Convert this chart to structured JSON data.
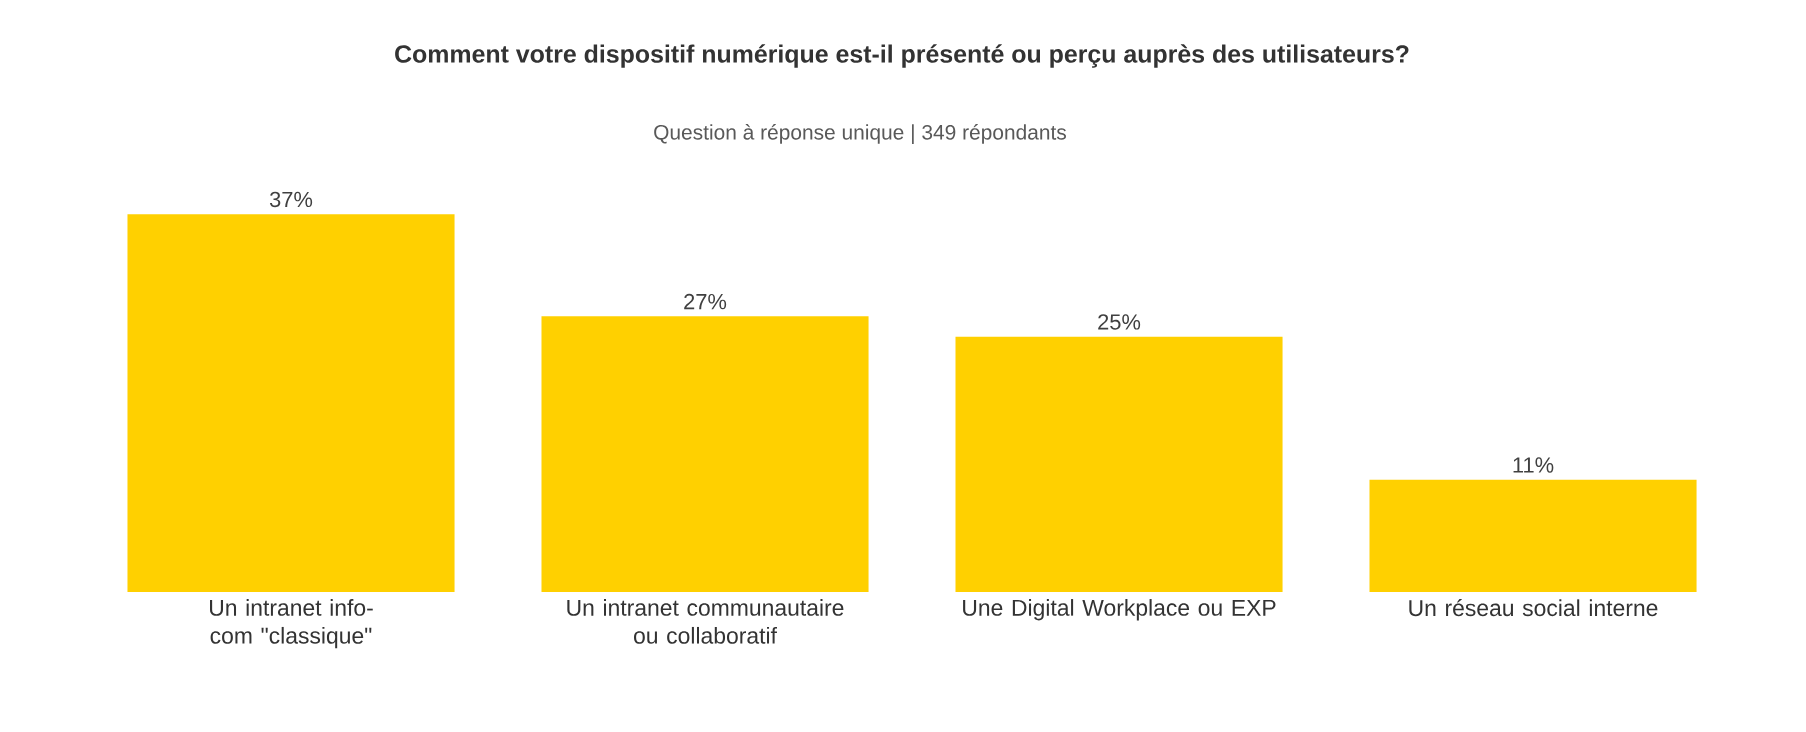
{
  "chart_data": {
    "type": "bar",
    "title": "Comment votre dispositif numérique est-il présenté ou perçu auprès des utilisateurs?",
    "subtitle": "Question à réponse unique | 349 répondants",
    "categories": [
      "Un intranet info-com \"classique\"",
      "Un intranet communautaire ou collaboratif",
      "Une Digital Workplace ou EXP",
      "Un réseau social interne"
    ],
    "values": [
      37,
      27,
      25,
      11
    ],
    "value_labels": [
      "37%",
      "27%",
      "25%",
      "11%"
    ],
    "color": "#ffd000"
  }
}
